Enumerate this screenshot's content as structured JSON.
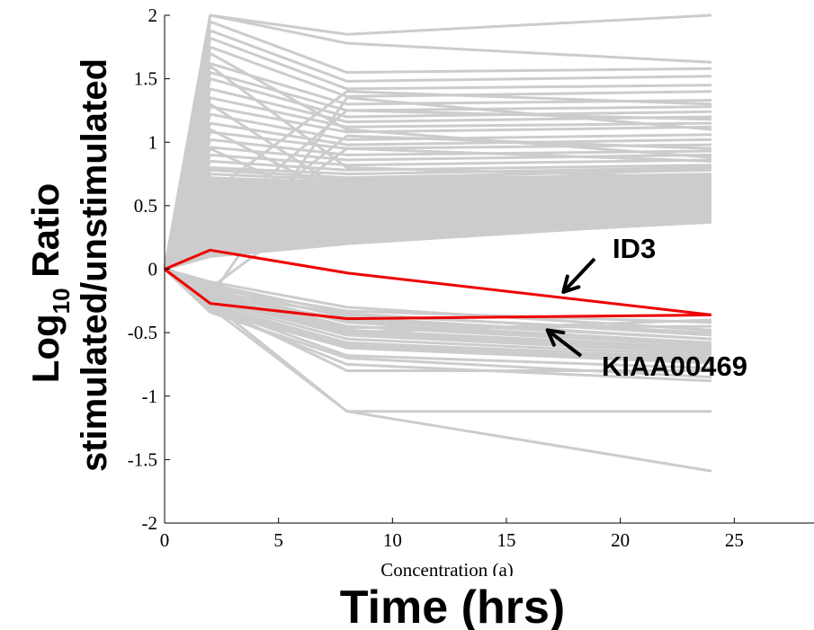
{
  "chart_data": {
    "type": "line",
    "title": "",
    "xlabel": "Time (hrs)",
    "xlabel_obscured": "Concentration (a)",
    "ylabel_line1_main": "Log",
    "ylabel_line1_sub": "10",
    "ylabel_line1_rest": " Ratio",
    "ylabel_line2": "stimulated/unstimulated",
    "xlim": [
      0,
      28.5
    ],
    "ylim": [
      -2,
      2
    ],
    "xticks": [
      0,
      5,
      10,
      15,
      20,
      25
    ],
    "xtick_labels": [
      "0",
      "5",
      "10",
      "15",
      "20",
      "25"
    ],
    "yticks": [
      -2,
      -1.5,
      -1,
      -0.5,
      0,
      0.5,
      1,
      1.5,
      2
    ],
    "ytick_labels": [
      "-2",
      "-1.5",
      "-1",
      "-0.5",
      "0",
      "0.5",
      "1",
      "1.5",
      "2"
    ],
    "grid": false,
    "x": [
      0,
      2,
      8,
      24
    ],
    "background_color": "#cccccc",
    "highlight_color": "#ee0000",
    "background_series": [
      [
        0,
        2.0,
        1.85,
        2.0
      ],
      [
        0,
        2.0,
        1.78,
        1.63
      ],
      [
        0,
        1.95,
        1.55,
        1.58
      ],
      [
        0,
        1.88,
        1.48,
        1.52
      ],
      [
        0,
        1.82,
        1.42,
        1.45
      ],
      [
        0,
        1.75,
        1.36,
        1.4
      ],
      [
        0,
        1.62,
        1.3,
        1.33
      ],
      [
        0,
        1.55,
        1.25,
        1.28
      ],
      [
        0,
        1.5,
        1.2,
        1.24
      ],
      [
        0,
        1.42,
        1.16,
        1.2
      ],
      [
        0,
        1.35,
        1.12,
        1.15
      ],
      [
        0,
        1.28,
        1.08,
        1.12
      ],
      [
        0,
        1.22,
        1.02,
        1.06
      ],
      [
        0,
        1.15,
        0.98,
        1.02
      ],
      [
        0,
        1.08,
        0.95,
        0.98
      ],
      [
        0,
        1.02,
        0.9,
        0.93
      ],
      [
        0,
        0.96,
        0.86,
        0.9
      ],
      [
        0,
        0.9,
        0.82,
        0.86
      ],
      [
        0,
        0.85,
        0.78,
        0.82
      ],
      [
        0,
        0.8,
        0.75,
        0.8
      ],
      [
        0,
        0.78,
        0.72,
        0.78
      ],
      [
        0,
        0.75,
        0.7,
        0.75
      ],
      [
        0,
        0.72,
        0.68,
        0.73
      ],
      [
        0,
        0.7,
        0.66,
        0.71
      ],
      [
        0,
        0.68,
        0.64,
        0.69
      ],
      [
        0,
        0.66,
        0.62,
        0.67
      ],
      [
        0,
        0.64,
        0.6,
        0.65
      ],
      [
        0,
        0.62,
        0.58,
        0.63
      ],
      [
        0,
        0.6,
        0.57,
        0.62
      ],
      [
        0,
        0.58,
        0.55,
        0.6
      ],
      [
        0,
        0.56,
        0.54,
        0.58
      ],
      [
        0,
        0.54,
        0.53,
        0.57
      ],
      [
        0,
        0.52,
        0.52,
        0.56
      ],
      [
        0,
        0.5,
        0.51,
        0.55
      ],
      [
        0,
        0.48,
        0.5,
        0.54
      ],
      [
        0,
        0.46,
        0.49,
        0.53
      ],
      [
        0,
        0.44,
        0.48,
        0.52
      ],
      [
        0,
        0.42,
        0.47,
        0.51
      ],
      [
        0,
        0.4,
        0.46,
        0.5
      ],
      [
        0,
        0.38,
        0.45,
        0.49
      ],
      [
        0,
        0.36,
        0.44,
        0.48
      ],
      [
        0,
        0.34,
        0.43,
        0.47
      ],
      [
        0,
        0.32,
        0.42,
        0.46
      ],
      [
        0,
        0.3,
        0.4,
        0.45
      ],
      [
        0,
        0.28,
        0.38,
        0.44
      ],
      [
        0,
        0.26,
        0.36,
        0.43
      ],
      [
        0,
        0.24,
        0.34,
        0.42
      ],
      [
        0,
        0.22,
        0.32,
        0.41
      ],
      [
        0,
        0.2,
        0.3,
        0.4
      ],
      [
        0,
        0.18,
        0.28,
        0.39
      ],
      [
        0,
        0.16,
        0.26,
        0.38
      ],
      [
        0,
        0.14,
        0.24,
        0.37
      ],
      [
        0,
        0.12,
        0.22,
        0.37
      ],
      [
        0,
        0.1,
        0.2,
        0.38
      ],
      [
        0,
        0.6,
        1.4,
        1.3
      ],
      [
        0,
        0.35,
        1.25,
        1.18
      ],
      [
        0,
        0.2,
        1.05,
        0.95
      ],
      [
        0,
        0.15,
        0.95,
        0.85
      ],
      [
        0,
        0.3,
        0.7,
        0.8
      ],
      [
        0,
        -0.22,
        1.35,
        1.1
      ],
      [
        0,
        -0.15,
        0.65,
        0.7
      ],
      [
        0,
        1.3,
        0.6,
        0.65
      ],
      [
        0,
        1.1,
        0.55,
        0.62
      ],
      [
        0,
        0.95,
        0.45,
        0.58
      ],
      [
        0,
        1.6,
        0.8,
        0.72
      ],
      [
        0,
        1.7,
        1.1,
        0.88
      ],
      [
        0,
        -0.1,
        -0.3,
        -0.48
      ],
      [
        0,
        -0.12,
        -0.35,
        -0.52
      ],
      [
        0,
        -0.14,
        -0.38,
        -0.55
      ],
      [
        0,
        -0.16,
        -0.42,
        -0.58
      ],
      [
        0,
        -0.18,
        -0.45,
        -0.6
      ],
      [
        0,
        -0.2,
        -0.48,
        -0.62
      ],
      [
        0,
        -0.22,
        -0.5,
        -0.64
      ],
      [
        0,
        -0.24,
        -0.52,
        -0.66
      ],
      [
        0,
        -0.26,
        -0.55,
        -0.68
      ],
      [
        0,
        -0.28,
        -0.58,
        -0.7
      ],
      [
        0,
        -0.3,
        -0.6,
        -0.72
      ],
      [
        0,
        -0.32,
        -0.62,
        -0.74
      ],
      [
        0,
        -0.2,
        -0.4,
        -0.55
      ],
      [
        0,
        -0.25,
        -0.45,
        -0.58
      ],
      [
        0,
        -0.18,
        -0.36,
        -0.5
      ],
      [
        0,
        -0.3,
        -0.68,
        -0.78
      ],
      [
        0,
        -0.28,
        -0.8,
        -0.8
      ],
      [
        0,
        -0.32,
        -0.75,
        -0.88
      ],
      [
        0,
        -0.34,
        -0.7,
        -0.85
      ],
      [
        0,
        -0.3,
        -1.12,
        -1.12
      ],
      [
        0,
        -0.26,
        -1.12,
        -1.59
      ],
      [
        0,
        -0.22,
        -0.46,
        -0.45
      ],
      [
        0,
        -0.24,
        -0.5,
        -0.4
      ],
      [
        0,
        -0.15,
        -0.33,
        -0.42
      ]
    ],
    "highlight_series": [
      {
        "name": "ID3",
        "values": [
          0,
          0.15,
          -0.03,
          -0.36
        ]
      },
      {
        "name": "KIAA00469",
        "values": [
          0,
          -0.27,
          -0.39,
          -0.36
        ]
      }
    ],
    "annotations": [
      {
        "text": "ID3",
        "points_to": [
          17.5,
          -0.18
        ]
      },
      {
        "text": "KIAA00469",
        "points_to": [
          16.8,
          -0.48
        ]
      }
    ]
  }
}
